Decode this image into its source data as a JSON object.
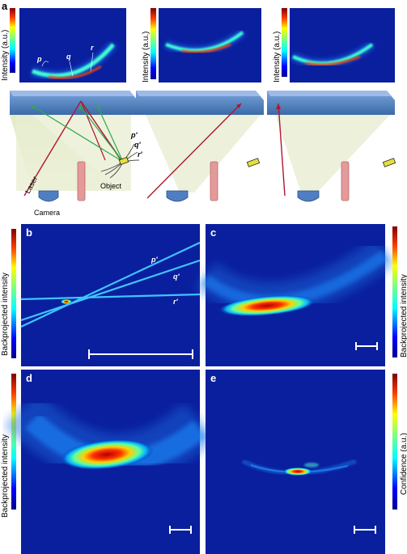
{
  "panel_labels": {
    "a": "a",
    "b": "b",
    "c": "c",
    "d": "d",
    "e": "e"
  },
  "panel_a": {
    "intensity_label": "Intensity (a.u.)",
    "curve_labels": [
      "p",
      "q",
      "r"
    ],
    "object_label": "Object",
    "laser_label": "Laser",
    "camera_label": "Camera",
    "object_curve_labels": [
      "p'",
      "q'",
      "r'"
    ]
  },
  "panel_b": {
    "ylabel": "Backprojected intensity",
    "line_labels": [
      "p'",
      "q'",
      "r'"
    ]
  },
  "panel_c": {
    "ylabel": "Backprojected intensity"
  },
  "panel_d": {
    "ylabel": "Backprojected intensity"
  },
  "panel_e": {
    "ylabel": "Confidence (a.u.)"
  },
  "colors": {
    "jet_background": "#0a1f9e",
    "laser": "#b0162b",
    "rays": "#2fa84f",
    "wall": "#4a78b8",
    "camera": "#4f7fc2",
    "occluder": "#e59a9a",
    "object": "#e6e03a"
  }
}
